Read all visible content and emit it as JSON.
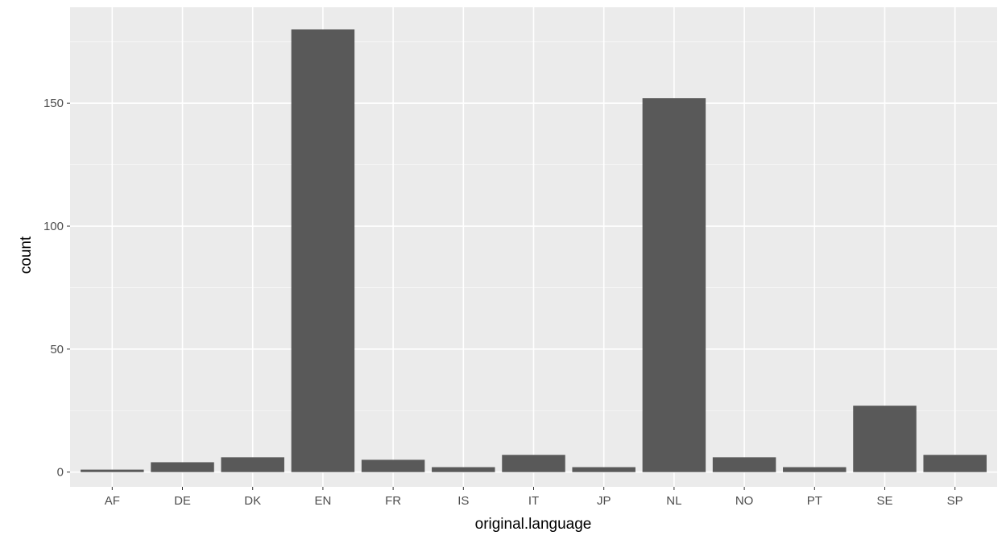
{
  "chart_data": {
    "type": "bar",
    "title": "",
    "xlabel": "original.language",
    "ylabel": "count",
    "categories": [
      "AF",
      "DE",
      "DK",
      "EN",
      "FR",
      "IS",
      "IT",
      "JP",
      "NL",
      "NO",
      "PT",
      "SE",
      "SP"
    ],
    "values": [
      1,
      4,
      6,
      180,
      5,
      2,
      7,
      2,
      152,
      6,
      2,
      27,
      7
    ],
    "ylim": [
      -6,
      189
    ],
    "yticks": [
      0,
      50,
      100,
      150
    ],
    "grid": true,
    "legend": "none",
    "colors": {
      "panel": "#ebebeb",
      "grid_major": "#ffffff",
      "bar": "#595959",
      "tick_label": "#4d4d4d",
      "axis_title": "#000000"
    }
  }
}
